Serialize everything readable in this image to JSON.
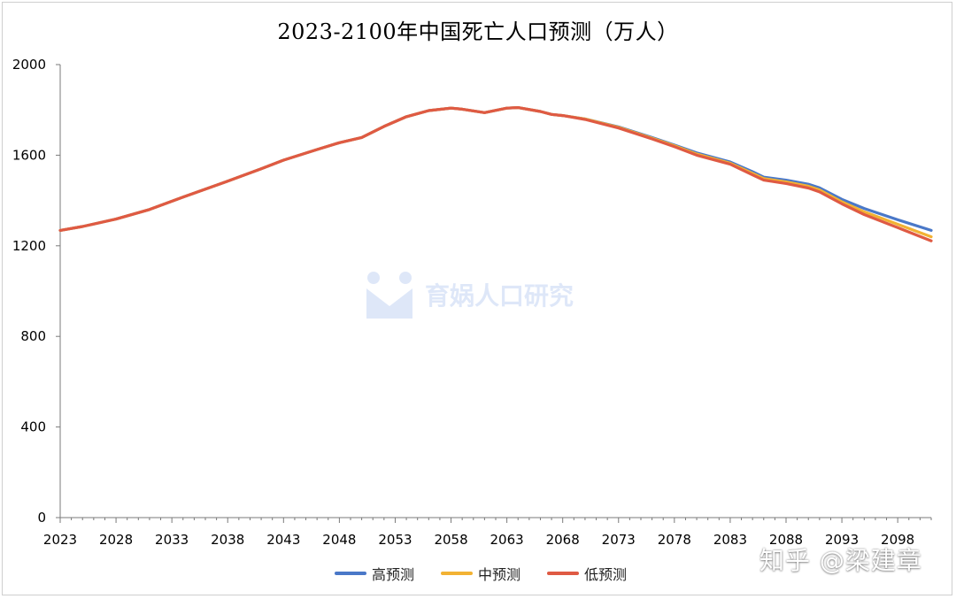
{
  "colors": {
    "high": "#4a78c8",
    "mid": "#f2b233",
    "low": "#df5a43",
    "axis": "#7a7a7a"
  },
  "chart_data": {
    "type": "line",
    "title": "2023-2100年中国死亡人口预测（万人）",
    "xlabel": "",
    "ylabel": "",
    "xlim": [
      2023,
      2101
    ],
    "ylim": [
      0,
      2000
    ],
    "yticks": [
      "0",
      "400",
      "800",
      "1200",
      "1600",
      "2000"
    ],
    "ytick_values": [
      0,
      400,
      800,
      1200,
      1600,
      2000
    ],
    "xticks": [
      "2023",
      "2028",
      "2033",
      "2038",
      "2043",
      "2048",
      "2053",
      "2058",
      "2063",
      "2068",
      "2073",
      "2078",
      "2083",
      "2088",
      "2093",
      "2098"
    ],
    "xtick_values": [
      2023,
      2028,
      2033,
      2038,
      2043,
      2048,
      2053,
      2058,
      2063,
      2068,
      2073,
      2078,
      2083,
      2088,
      2093,
      2098
    ],
    "legend_position": "bottom",
    "x": [
      2023,
      2025,
      2028,
      2031,
      2034,
      2038,
      2041,
      2043,
      2046,
      2048,
      2050,
      2052,
      2054,
      2056,
      2058,
      2059,
      2061,
      2063,
      2064,
      2066,
      2067,
      2068,
      2070,
      2073,
      2076,
      2078,
      2080,
      2083,
      2085,
      2086,
      2088,
      2090,
      2091,
      2093,
      2095,
      2098,
      2101
    ],
    "series": [
      {
        "name": "高预测",
        "values": [
          1268,
          1285,
          1318,
          1360,
          1415,
          1485,
          1540,
          1578,
          1625,
          1655,
          1678,
          1727,
          1770,
          1797,
          1808,
          1803,
          1788,
          1808,
          1810,
          1793,
          1780,
          1775,
          1760,
          1725,
          1678,
          1645,
          1610,
          1570,
          1527,
          1503,
          1490,
          1472,
          1456,
          1405,
          1365,
          1315,
          1268
        ]
      },
      {
        "name": "中预测",
        "values": [
          1268,
          1285,
          1318,
          1360,
          1415,
          1485,
          1540,
          1578,
          1625,
          1655,
          1678,
          1727,
          1770,
          1797,
          1808,
          1803,
          1788,
          1808,
          1810,
          1793,
          1780,
          1775,
          1760,
          1723,
          1675,
          1642,
          1605,
          1565,
          1520,
          1497,
          1482,
          1463,
          1447,
          1394,
          1350,
          1295,
          1240
        ]
      },
      {
        "name": "低预测",
        "values": [
          1268,
          1285,
          1318,
          1360,
          1415,
          1485,
          1540,
          1578,
          1625,
          1655,
          1678,
          1727,
          1770,
          1797,
          1808,
          1803,
          1788,
          1808,
          1810,
          1793,
          1780,
          1775,
          1758,
          1720,
          1672,
          1638,
          1600,
          1560,
          1513,
          1490,
          1475,
          1455,
          1438,
          1385,
          1338,
          1280,
          1222
        ]
      }
    ]
  },
  "watermarks": {
    "zhihu": "知乎 @梁建章",
    "yuwa": "育娲人口研究"
  }
}
